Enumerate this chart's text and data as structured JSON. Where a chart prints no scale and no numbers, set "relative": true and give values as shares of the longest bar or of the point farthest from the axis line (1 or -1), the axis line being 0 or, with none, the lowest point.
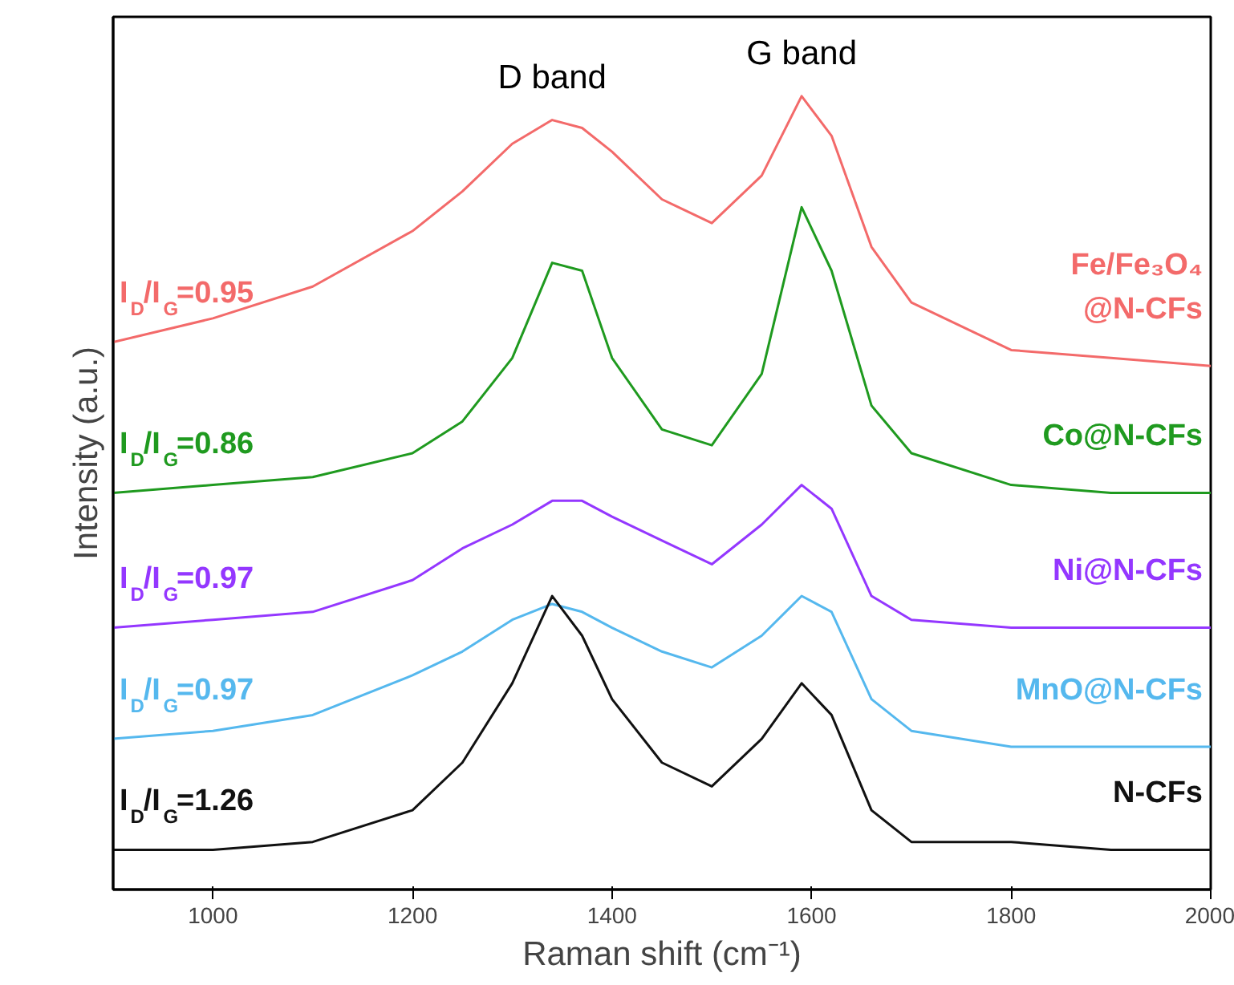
{
  "chart_data": {
    "type": "line",
    "relative": true,
    "xlabel": "Raman shift (cm⁻¹)",
    "ylabel": "Intensity (a.u.)",
    "x": [
      900,
      1000,
      1100,
      1200,
      1250,
      1300,
      1340,
      1370,
      1400,
      1450,
      1500,
      1550,
      1590,
      1620,
      1660,
      1700,
      1800,
      1900,
      2000
    ],
    "xlim": [
      900,
      2000
    ],
    "xticks": [
      1000,
      1200,
      1400,
      1600,
      1800,
      2000
    ],
    "tick_labels": "x",
    "series": [
      {
        "name": "Fe/Fe₃O₄@N-CFs",
        "color": "#f36a6a",
        "values": [
          0.69,
          0.72,
          0.76,
          0.83,
          0.88,
          0.94,
          0.97,
          0.96,
          0.93,
          0.87,
          0.84,
          0.9,
          1.0,
          0.95,
          0.81,
          0.74,
          0.68,
          0.67,
          0.66
        ]
      },
      {
        "name": "Co@N-CFs",
        "color": "#1f9a1f",
        "values": [
          0.5,
          0.51,
          0.52,
          0.55,
          0.59,
          0.67,
          0.79,
          0.78,
          0.67,
          0.58,
          0.56,
          0.65,
          0.86,
          0.78,
          0.61,
          0.55,
          0.51,
          0.5,
          0.5
        ]
      },
      {
        "name": "Ni@N-CFs",
        "color": "#9437ff",
        "values": [
          0.33,
          0.34,
          0.35,
          0.39,
          0.43,
          0.46,
          0.49,
          0.49,
          0.47,
          0.44,
          0.41,
          0.46,
          0.51,
          0.48,
          0.37,
          0.34,
          0.33,
          0.33,
          0.33
        ]
      },
      {
        "name": "MnO@N-CFs",
        "color": "#55b8ee",
        "values": [
          0.19,
          0.2,
          0.22,
          0.27,
          0.3,
          0.34,
          0.36,
          0.35,
          0.33,
          0.3,
          0.28,
          0.32,
          0.37,
          0.35,
          0.24,
          0.2,
          0.18,
          0.18,
          0.18
        ]
      },
      {
        "name": "N-CFs",
        "color": "#111111",
        "values": [
          0.05,
          0.05,
          0.06,
          0.1,
          0.16,
          0.26,
          0.37,
          0.32,
          0.24,
          0.16,
          0.13,
          0.19,
          0.26,
          0.22,
          0.1,
          0.06,
          0.06,
          0.05,
          0.05
        ]
      }
    ],
    "annotations": [
      "D band",
      "G band",
      "I$_{D}$/I$_{G}$=0.95",
      "I$_{D}$/I$_{G}$=0.86",
      "I$_{D}$/I$_{G}$=0.97",
      "I$_{D}$/I$_{G}$=0.97",
      "I$_{D}$/I$_{G}$=1.26"
    ]
  }
}
